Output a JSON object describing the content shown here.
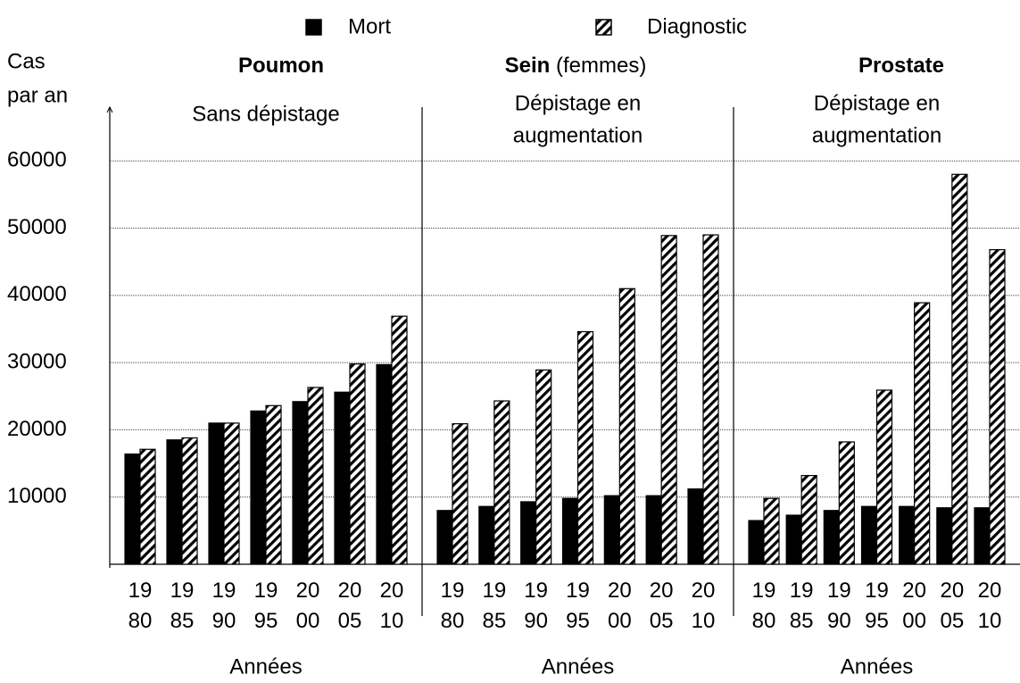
{
  "chart_data": {
    "type": "bar",
    "series": [
      {
        "name": "Mort",
        "color": "#000000",
        "hatch": false
      },
      {
        "name": "Diagnostic",
        "color": "#000000",
        "hatch": true
      }
    ],
    "ylabel": [
      "Cas",
      "par an"
    ],
    "ylim": [
      0,
      68000
    ],
    "yticks": [
      10000,
      20000,
      30000,
      40000,
      50000,
      60000
    ],
    "grid": true,
    "panels": [
      {
        "title": "Poumon",
        "subtitle": [
          "Sans dépistage"
        ],
        "xlabel": "Années",
        "categories": [
          "1980",
          "1985",
          "1990",
          "1995",
          "2000",
          "2005",
          "2010"
        ],
        "values": [
          [
            16400,
            18500,
            21000,
            22800,
            24200,
            25600,
            29700
          ],
          [
            17100,
            18800,
            21000,
            23600,
            26300,
            29800,
            36900
          ]
        ]
      },
      {
        "title": "Sein",
        "title_note": "(femmes)",
        "subtitle": [
          "Dépistage en",
          "augmentation"
        ],
        "xlabel": "Années",
        "categories": [
          "1980",
          "1985",
          "1990",
          "1995",
          "2000",
          "2005",
          "2010"
        ],
        "values": [
          [
            8000,
            8600,
            9300,
            9800,
            10200,
            10200,
            11200
          ],
          [
            20900,
            24300,
            28900,
            34600,
            41000,
            48900,
            49000
          ]
        ]
      },
      {
        "title": "Prostate",
        "subtitle": [
          "Dépistage en",
          "augmentation"
        ],
        "xlabel": "Années",
        "categories": [
          "1980",
          "1985",
          "1990",
          "1995",
          "2000",
          "2005",
          "2010"
        ],
        "values": [
          [
            6500,
            7300,
            8000,
            8600,
            8600,
            8400,
            8400
          ],
          [
            9800,
            13200,
            18200,
            25900,
            38900,
            58000,
            46800
          ]
        ]
      }
    ]
  }
}
